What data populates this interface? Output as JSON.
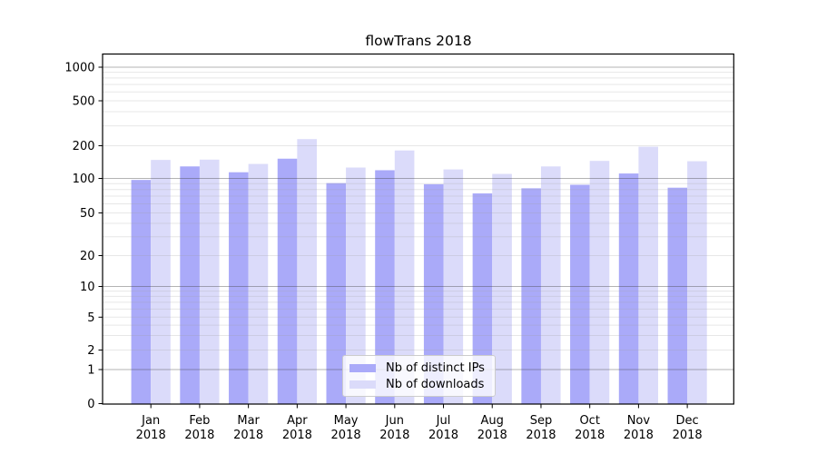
{
  "title": "flowTrans 2018",
  "chart_data": {
    "type": "bar",
    "categories": [
      "Jan 2018",
      "Feb 2018",
      "Mar 2018",
      "Apr 2018",
      "May 2018",
      "Jun 2018",
      "Jul 2018",
      "Aug 2018",
      "Sep 2018",
      "Oct 2018",
      "Nov 2018",
      "Dec 2018"
    ],
    "series": [
      {
        "name": "Nb of distinct IPs",
        "color": "#aaaaf9",
        "values": [
          97,
          129,
          114,
          152,
          91,
          119,
          89,
          74,
          82,
          88,
          111,
          83
        ]
      },
      {
        "name": "Nb of downloads",
        "color": "#dbdbfa",
        "values": [
          148,
          149,
          136,
          229,
          126,
          181,
          121,
          110,
          129,
          145,
          196,
          144
        ]
      }
    ],
    "yticks": [
      0,
      1,
      2,
      5,
      10,
      20,
      50,
      100,
      200,
      500,
      1000
    ],
    "yscale": "symlog",
    "ylim": [
      0,
      1300
    ],
    "xlabel": "",
    "ylabel": "",
    "grid": true,
    "legend_position": "lower center, inside plot"
  },
  "colors": {
    "background": "#ffffff",
    "spine": "#000000",
    "grid_major": "#b4b4b4",
    "grid_minor": "#e8e8e8",
    "bar_distinct_ips": "#aaaaf9",
    "bar_downloads": "#dbdbfa"
  }
}
